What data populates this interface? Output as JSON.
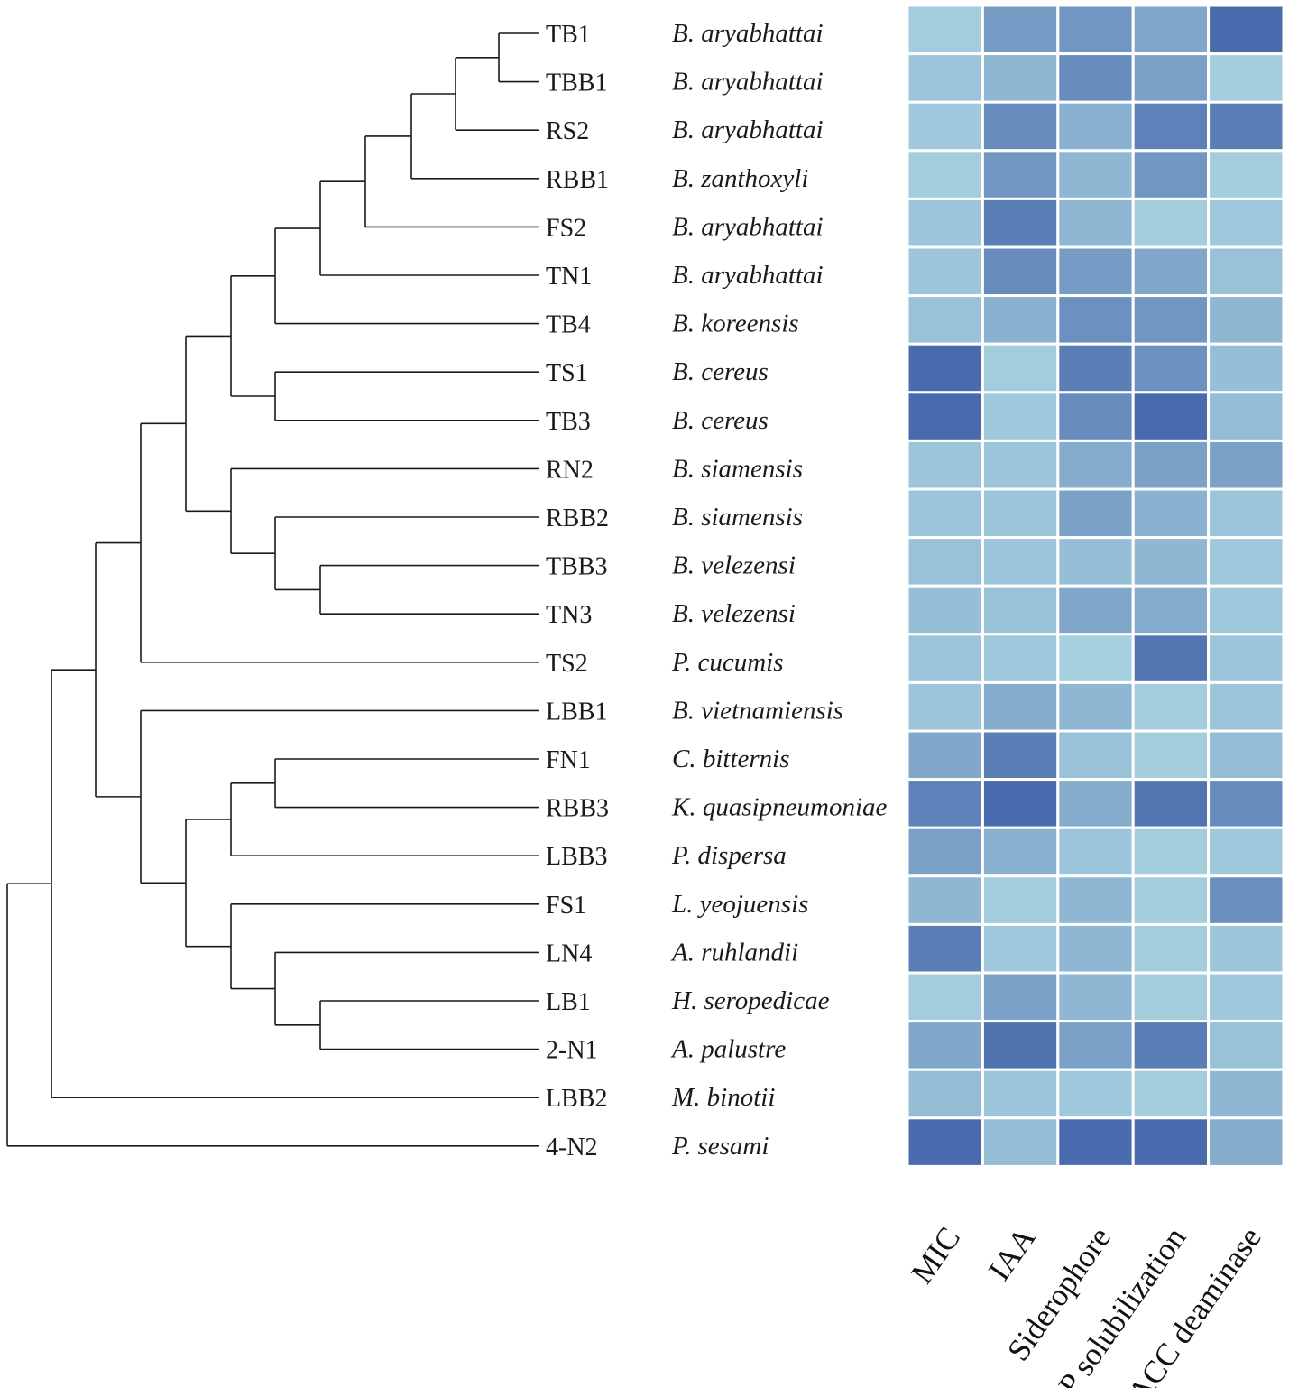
{
  "chart_data": {
    "type": "heatmap",
    "title": "",
    "columns": [
      "MIC",
      "IAA",
      "Siderophore",
      "P solubilization",
      "ACC deaminase"
    ],
    "value_scale": "relative intensity 0 (low, light blue) to 1 (high, dark blue); estimated from cell color",
    "color_scale": {
      "low": "#a8d1e0",
      "high": "#4466aa"
    },
    "rows": [
      {
        "strain": "TB1",
        "species": "B. aryabhattai",
        "values": [
          0.05,
          0.5,
          0.55,
          0.4,
          0.95
        ]
      },
      {
        "strain": "TBB1",
        "species": "B. aryabhattai",
        "values": [
          0.12,
          0.25,
          0.65,
          0.45,
          0.05
        ]
      },
      {
        "strain": "RS2",
        "species": "B. aryabhattai",
        "values": [
          0.08,
          0.65,
          0.3,
          0.75,
          0.78
        ]
      },
      {
        "strain": "RBB1",
        "species": "B. zanthoxyli",
        "values": [
          0.05,
          0.55,
          0.25,
          0.55,
          0.05
        ]
      },
      {
        "strain": "FS2",
        "species": "B. aryabhattai",
        "values": [
          0.1,
          0.78,
          0.25,
          0.05,
          0.08
        ]
      },
      {
        "strain": "TN1",
        "species": "B. aryabhattai",
        "values": [
          0.1,
          0.65,
          0.5,
          0.4,
          0.15
        ]
      },
      {
        "strain": "TB4",
        "species": "B. koreensis",
        "values": [
          0.15,
          0.3,
          0.6,
          0.55,
          0.25
        ]
      },
      {
        "strain": "TS1",
        "species": "B. cereus",
        "values": [
          0.95,
          0.05,
          0.78,
          0.6,
          0.18
        ]
      },
      {
        "strain": "TB3",
        "species": "B. cereus",
        "values": [
          0.95,
          0.08,
          0.65,
          0.95,
          0.2
        ]
      },
      {
        "strain": "RN2",
        "species": "B. siamensis",
        "values": [
          0.12,
          0.12,
          0.35,
          0.45,
          0.45
        ]
      },
      {
        "strain": "RBB2",
        "species": "B. siamensis",
        "values": [
          0.12,
          0.1,
          0.45,
          0.3,
          0.12
        ]
      },
      {
        "strain": "TBB3",
        "species": "B. velezensi",
        "values": [
          0.15,
          0.12,
          0.18,
          0.25,
          0.08
        ]
      },
      {
        "strain": "TN3",
        "species": "B. velezensi",
        "values": [
          0.18,
          0.15,
          0.4,
          0.35,
          0.08
        ]
      },
      {
        "strain": "TS2",
        "species": "P. cucumis",
        "values": [
          0.12,
          0.08,
          0.02,
          0.85,
          0.12
        ]
      },
      {
        "strain": "LBB1",
        "species": "B. vietnamiensis",
        "values": [
          0.1,
          0.35,
          0.25,
          0.05,
          0.12
        ]
      },
      {
        "strain": "FN1",
        "species": "C. bitternis",
        "values": [
          0.4,
          0.78,
          0.15,
          0.05,
          0.2
        ]
      },
      {
        "strain": "RBB3",
        "species": "K. quasipneumoniae",
        "values": [
          0.75,
          0.95,
          0.35,
          0.85,
          0.65
        ]
      },
      {
        "strain": "LBB3",
        "species": "P. dispersa",
        "values": [
          0.45,
          0.3,
          0.12,
          0.05,
          0.08
        ]
      },
      {
        "strain": "FS1",
        "species": "L. yeojuensis",
        "values": [
          0.25,
          0.05,
          0.25,
          0.05,
          0.62
        ]
      },
      {
        "strain": "LN4",
        "species": "A. ruhlandii",
        "values": [
          0.78,
          0.08,
          0.25,
          0.05,
          0.1
        ]
      },
      {
        "strain": "LB1",
        "species": "H. seropedicae",
        "values": [
          0.05,
          0.45,
          0.25,
          0.05,
          0.08
        ]
      },
      {
        "strain": "2-N1",
        "species": "A. palustre",
        "values": [
          0.4,
          0.88,
          0.45,
          0.78,
          0.15
        ]
      },
      {
        "strain": "LBB2",
        "species": "M. binotii",
        "values": [
          0.2,
          0.1,
          0.08,
          0.05,
          0.25
        ]
      },
      {
        "strain": "4-N2",
        "species": "P. sesami",
        "values": [
          0.95,
          0.2,
          0.95,
          0.95,
          0.35
        ]
      }
    ],
    "tree": {
      "children": [
        {
          "children": [
            {
              "children": [
                {
                  "children": [
                    {
                      "children": [
                        {
                          "children": [
                            {
                              "children": [
                                {
                                  "children": [
                                    {
                                      "children": [
                                        {
                                          "children": [
                                            {
                                              "leaf": "TB1"
                                            },
                                            {
                                              "leaf": "TBB1"
                                            }
                                          ]
                                        },
                                        {
                                          "leaf": "RS2"
                                        }
                                      ]
                                    },
                                    {
                                      "leaf": "RBB1"
                                    }
                                  ]
                                },
                                {
                                  "leaf": "FS2"
                                }
                              ]
                            },
                            {
                              "leaf": "TN1"
                            }
                          ]
                        },
                        {
                          "leaf": "TB4"
                        }
                      ]
                    },
                    {
                      "children": [
                        {
                          "leaf": "TS1"
                        },
                        {
                          "leaf": "TB3"
                        }
                      ]
                    }
                  ]
                },
                {
                  "children": [
                    {
                      "leaf": "RN2"
                    },
                    {
                      "children": [
                        {
                          "leaf": "RBB2"
                        },
                        {
                          "children": [
                            {
                              "leaf": "TBB3"
                            },
                            {
                              "leaf": "TN3"
                            }
                          ]
                        }
                      ]
                    }
                  ]
                }
              ]
            },
            {
              "leaf": "TS2"
            }
          ]
        },
        {
          "children": [
            {
              "leaf": "LBB1"
            },
            {
              "children": [
                {
                  "children": [
                    {
                      "children": [
                        {
                          "leaf": "FN1"
                        },
                        {
                          "leaf": "RBB3"
                        }
                      ]
                    },
                    {
                      "leaf": "LBB3"
                    }
                  ]
                },
                {
                  "children": [
                    {
                      "leaf": "FS1"
                    },
                    {
                      "children": [
                        {
                          "leaf": "LN4"
                        },
                        {
                          "children": [
                            {
                              "leaf": "LB1"
                            },
                            {
                              "leaf": "2-N1"
                            }
                          ]
                        }
                      ]
                    }
                  ]
                }
              ]
            }
          ]
        }
      ]
    },
    "tree_outgroups": [
      "LBB2",
      "4-N2"
    ]
  }
}
